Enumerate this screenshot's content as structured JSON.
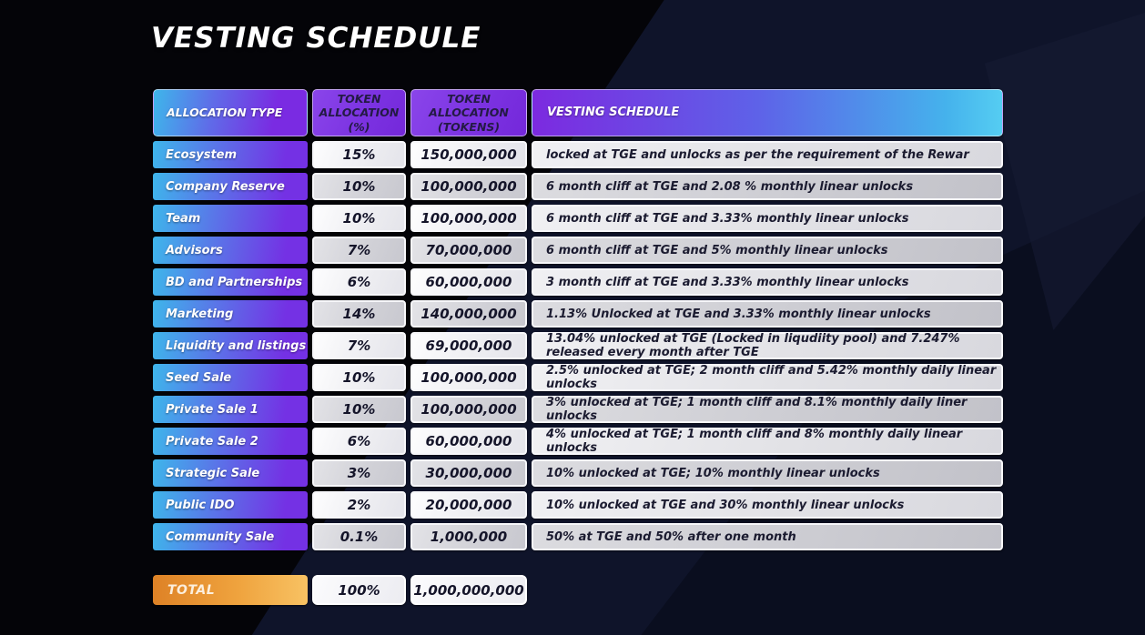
{
  "page": {
    "title": "VESTING SCHEDULE"
  },
  "colors": {
    "background": "#040408",
    "background_shape": "#121730",
    "header_purple": "#7c33e2",
    "gradient_cyan": "#3eb6eb",
    "gradient_purple": "#7431e4",
    "cell_light": "#ededf1",
    "cell_dark": "#cdcdd3",
    "total_orange": "#efa33e",
    "text_dark": "#15152a",
    "text_white": "#ffffff"
  },
  "table": {
    "headers": [
      "ALLOCATION TYPE",
      "TOKEN ALLOCATION (%)",
      "TOKEN ALLOCATION (TOKENS)",
      "VESTING SCHEDULE"
    ],
    "rows": [
      {
        "type": "Ecosystem",
        "pct": "15%",
        "tokens": "150,000,000",
        "vesting": "locked at TGE and unlocks as per the requirement of the Rewar"
      },
      {
        "type": "Company Reserve",
        "pct": "10%",
        "tokens": "100,000,000",
        "vesting": "6 month cliff at TGE and 2.08 % monthly linear unlocks"
      },
      {
        "type": "Team",
        "pct": "10%",
        "tokens": "100,000,000",
        "vesting": "6 month cliff at TGE and 3.33% monthly linear unlocks"
      },
      {
        "type": "Advisors",
        "pct": "7%",
        "tokens": "70,000,000",
        "vesting": "6 month cliff at TGE and 5% monthly linear unlocks"
      },
      {
        "type": "BD and Partnerships",
        "pct": "6%",
        "tokens": "60,000,000",
        "vesting": "3 month cliff at TGE and 3.33% monthly linear unlocks"
      },
      {
        "type": "Marketing",
        "pct": "14%",
        "tokens": "140,000,000",
        "vesting": "1.13% Unlocked at TGE and 3.33% monthly linear unlocks"
      },
      {
        "type": "Liquidity and listings",
        "pct": "7%",
        "tokens": "69,000,000",
        "vesting": "13.04% unlocked at TGE (Locked in liqudiity pool) and 7.247% released every month after TGE"
      },
      {
        "type": "Seed Sale",
        "pct": "10%",
        "tokens": "100,000,000",
        "vesting": "2.5% unlocked at TGE; 2 month cliff and 5.42% monthly daily linear unlocks"
      },
      {
        "type": "Private Sale 1",
        "pct": "10%",
        "tokens": "100,000,000",
        "vesting": "3% unlocked at TGE; 1 month cliff and 8.1% monthly daily liner unlocks"
      },
      {
        "type": "Private Sale 2",
        "pct": "6%",
        "tokens": "60,000,000",
        "vesting": "4% unlocked at TGE; 1 month cliff and 8% monthly daily linear unlocks"
      },
      {
        "type": "Strategic Sale",
        "pct": "3%",
        "tokens": "30,000,000",
        "vesting": "10% unlocked at TGE; 10% monthly linear unlocks"
      },
      {
        "type": "Public IDO",
        "pct": "2%",
        "tokens": "20,000,000",
        "vesting": "10% unlocked at TGE and 30% monthly linear unlocks"
      },
      {
        "type": "Community Sale",
        "pct": "0.1%",
        "tokens": "1,000,000",
        "vesting": "50% at TGE and 50% after one month"
      }
    ],
    "total": {
      "label": "TOTAL",
      "pct": "100%",
      "tokens": "1,000,000,000"
    }
  },
  "chart_data": {
    "type": "table",
    "title": "VESTING SCHEDULE",
    "columns": [
      "ALLOCATION TYPE",
      "TOKEN ALLOCATION (%)",
      "TOKEN ALLOCATION (TOKENS)",
      "VESTING SCHEDULE"
    ],
    "allocation_pct": [
      15,
      10,
      10,
      7,
      6,
      14,
      7,
      10,
      10,
      6,
      3,
      2,
      0.1
    ],
    "allocation_tokens": [
      150000000,
      100000000,
      100000000,
      70000000,
      60000000,
      140000000,
      69000000,
      100000000,
      100000000,
      60000000,
      30000000,
      20000000,
      1000000
    ],
    "categories": [
      "Ecosystem",
      "Company Reserve",
      "Team",
      "Advisors",
      "BD and Partnerships",
      "Marketing",
      "Liquidity and listings",
      "Seed Sale",
      "Private Sale 1",
      "Private Sale 2",
      "Strategic Sale",
      "Public IDO",
      "Community Sale"
    ],
    "total": {
      "pct": 100,
      "tokens": 1000000000
    }
  }
}
